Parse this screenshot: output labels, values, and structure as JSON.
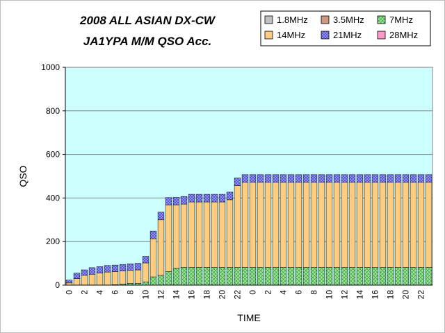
{
  "title_line1": "2008 ALL ASIAN DX-CW",
  "title_line2": "JA1YPA M/M   QSO Acc.",
  "chart_data": {
    "type": "bar",
    "stacked": true,
    "title": "2008 ALL ASIAN DX-CW JA1YPA M/M   QSO Acc.",
    "xlabel": "TIME",
    "ylabel": "QSO",
    "ylim": [
      0,
      1000
    ],
    "yticks": [
      0,
      200,
      400,
      600,
      800,
      1000
    ],
    "grid": true,
    "legend_position": "top-right",
    "background_color": "#ccffff",
    "categories": [
      "0",
      "1",
      "2",
      "3",
      "4",
      "5",
      "6",
      "7",
      "8",
      "9",
      "10",
      "11",
      "12",
      "13",
      "14",
      "15",
      "16",
      "17",
      "18",
      "19",
      "20",
      "21",
      "22",
      "23",
      "0",
      "1",
      "2",
      "3",
      "4",
      "5",
      "6",
      "7",
      "8",
      "9",
      "10",
      "11",
      "12",
      "13",
      "14",
      "15",
      "16",
      "17",
      "18",
      "19",
      "20",
      "21",
      "22",
      "23"
    ],
    "xtick_labels": [
      "0",
      "",
      "2",
      "",
      "4",
      "",
      "6",
      "",
      "8",
      "",
      "10",
      "",
      "12",
      "",
      "14",
      "",
      "16",
      "",
      "18",
      "",
      "20",
      "",
      "22",
      "",
      "0",
      "",
      "2",
      "",
      "4",
      "",
      "6",
      "",
      "8",
      "",
      "10",
      "",
      "12",
      "",
      "14",
      "",
      "16",
      "",
      "18",
      "",
      "20",
      "",
      "22",
      ""
    ],
    "series": [
      {
        "name": "1.8MHz",
        "color": "#c0c0c0",
        "values": [
          0,
          0,
          0,
          0,
          0,
          0,
          0,
          0,
          0,
          0,
          0,
          0,
          0,
          0,
          0,
          0,
          0,
          0,
          0,
          0,
          0,
          0,
          0,
          0,
          0,
          0,
          0,
          0,
          0,
          0,
          0,
          0,
          0,
          0,
          0,
          0,
          0,
          0,
          0,
          0,
          0,
          0,
          0,
          0,
          0,
          0,
          0,
          0
        ]
      },
      {
        "name": "3.5MHz",
        "color": "#cc9980",
        "values": [
          0,
          0,
          0,
          0,
          0,
          0,
          0,
          0,
          0,
          0,
          0,
          0,
          0,
          0,
          0,
          0,
          0,
          0,
          0,
          0,
          0,
          0,
          0,
          0,
          0,
          0,
          0,
          0,
          0,
          0,
          0,
          0,
          0,
          0,
          0,
          0,
          0,
          0,
          0,
          0,
          0,
          0,
          0,
          0,
          0,
          0,
          0,
          0
        ]
      },
      {
        "name": "7MHz",
        "color": "#99e699",
        "values": [
          0,
          0,
          0,
          0,
          0,
          0,
          2,
          5,
          8,
          8,
          15,
          38,
          45,
          62,
          78,
          82,
          82,
          82,
          82,
          82,
          82,
          82,
          82,
          82,
          82,
          82,
          82,
          82,
          82,
          82,
          82,
          82,
          82,
          82,
          82,
          82,
          82,
          82,
          82,
          82,
          82,
          82,
          82,
          82,
          82,
          82,
          82,
          82
        ]
      },
      {
        "name": "14MHz",
        "color": "#ffcc80",
        "values": [
          10,
          30,
          45,
          50,
          55,
          60,
          60,
          60,
          60,
          62,
          87,
          175,
          255,
          305,
          290,
          290,
          300,
          300,
          300,
          300,
          300,
          310,
          375,
          390,
          390,
          390,
          390,
          390,
          390,
          390,
          390,
          390,
          390,
          390,
          390,
          390,
          390,
          390,
          390,
          390,
          390,
          390,
          390,
          390,
          390,
          390,
          390,
          390
        ]
      },
      {
        "name": "21MHz",
        "color": "#9999ff",
        "values": [
          13,
          25,
          25,
          30,
          30,
          30,
          30,
          30,
          30,
          30,
          30,
          35,
          35,
          35,
          35,
          35,
          35,
          35,
          35,
          35,
          35,
          35,
          35,
          35,
          35,
          35,
          35,
          35,
          35,
          35,
          35,
          35,
          35,
          35,
          35,
          35,
          35,
          35,
          35,
          35,
          35,
          35,
          35,
          35,
          35,
          35,
          35,
          35
        ]
      },
      {
        "name": "28MHz",
        "color": "#ff99cc",
        "values": [
          0,
          0,
          0,
          0,
          0,
          0,
          0,
          0,
          0,
          0,
          0,
          0,
          0,
          0,
          0,
          0,
          0,
          0,
          0,
          0,
          0,
          0,
          0,
          0,
          0,
          0,
          0,
          0,
          0,
          0,
          0,
          0,
          0,
          0,
          0,
          0,
          0,
          0,
          0,
          0,
          0,
          0,
          0,
          0,
          0,
          0,
          0,
          0
        ]
      }
    ]
  }
}
